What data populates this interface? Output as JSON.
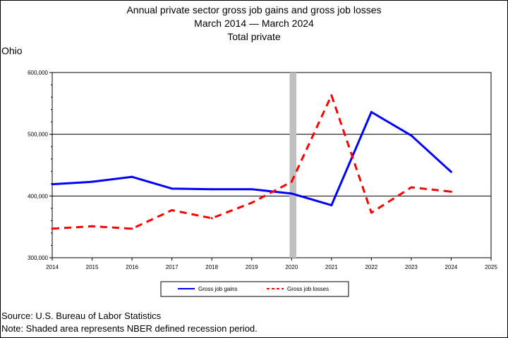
{
  "header": {
    "title": "Annual private sector gross job gains and gross job losses",
    "date_range": "March 2014 — March 2024",
    "subtitle": "Total private",
    "state": "Ohio"
  },
  "footer": {
    "source": "Source: U.S. Bureau of Labor Statistics",
    "note": "Note: Shaded area represents NBER defined recession period."
  },
  "colors": {
    "gains": "#0000ff",
    "losses": "#ff0000",
    "recession": "#c0c0c0"
  },
  "chart_data": {
    "type": "line",
    "x": [
      2014,
      2015,
      2016,
      2017,
      2018,
      2019,
      2020,
      2021,
      2022,
      2023,
      2024
    ],
    "xticks": [
      "2014",
      "2015",
      "2016",
      "2017",
      "2018",
      "2019",
      "2020",
      "2021",
      "2022",
      "2023",
      "2024",
      "2025"
    ],
    "xlim": [
      2014,
      2025
    ],
    "ylim": [
      300000,
      600000
    ],
    "yticks": [
      "300,000",
      "400,000",
      "500,000",
      "600,000"
    ],
    "ytick_values": [
      300000,
      400000,
      500000,
      600000
    ],
    "grid": "horizontal",
    "recession_shading": {
      "start": 2019.95,
      "end": 2020.12
    },
    "legend_position": "bottom",
    "series": [
      {
        "name": "Gross job gains",
        "style": "solid",
        "color": "#0000ff",
        "values": [
          419000,
          423000,
          431000,
          412000,
          411000,
          411000,
          404000,
          385000,
          536000,
          498000,
          439000
        ]
      },
      {
        "name": "Gross job losses",
        "style": "dashed",
        "color": "#ff0000",
        "values": [
          347000,
          351000,
          347000,
          377000,
          364000,
          389000,
          423000,
          563000,
          373000,
          414000,
          407000
        ]
      }
    ]
  }
}
